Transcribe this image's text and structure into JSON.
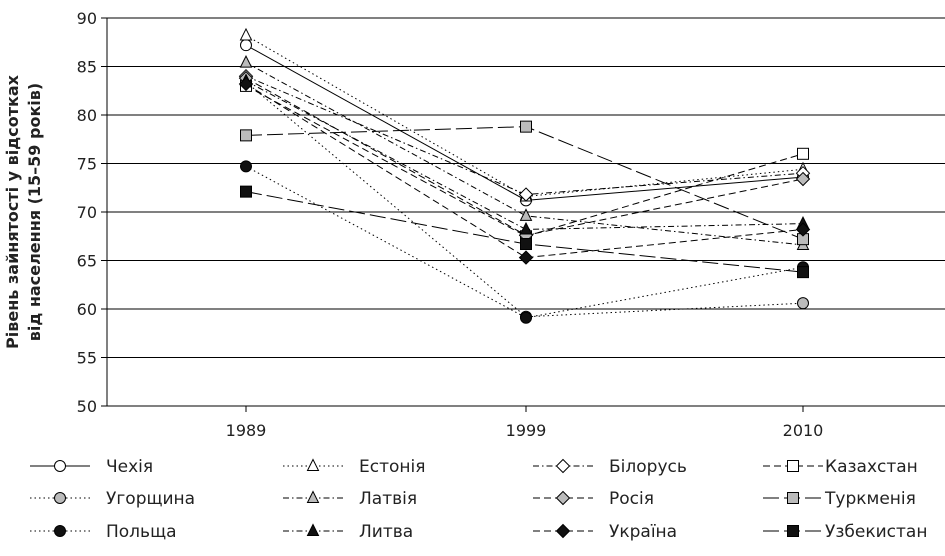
{
  "chart_data": {
    "type": "line",
    "title": "",
    "ylabel_lines": [
      "Рівень зайнятості у відсотках",
      "від населення (15–59 років)"
    ],
    "xlabel": "",
    "x": [
      "1989",
      "1999",
      "2010"
    ],
    "ylim": [
      50,
      90
    ],
    "yticks": [
      50,
      55,
      60,
      65,
      70,
      75,
      80,
      85,
      90
    ],
    "grid": true,
    "legend_position": "bottom",
    "series": [
      {
        "name": "Чехія",
        "values": [
          87.2,
          71.2,
          73.6
        ],
        "dash": "solid",
        "marker": "circle",
        "fill": "#ffffff"
      },
      {
        "name": "Естонія",
        "values": [
          88.2,
          71.6,
          74.4
        ],
        "dash": "dotted",
        "marker": "triangle",
        "fill": "#ffffff"
      },
      {
        "name": "Білорусь",
        "values": [
          84.0,
          71.8,
          74.0
        ],
        "dash": "dashdot",
        "marker": "diamond",
        "fill": "#ffffff"
      },
      {
        "name": "Казахстан",
        "values": [
          83.0,
          67.5,
          76.0
        ],
        "dash": "dashed",
        "marker": "square",
        "fill": "#ffffff"
      },
      {
        "name": "Угорщина",
        "values": [
          83.4,
          59.2,
          60.6
        ],
        "dash": "dotted",
        "marker": "circle",
        "fill": "#bbbbbb"
      },
      {
        "name": "Латвія",
        "values": [
          85.4,
          69.6,
          66.6
        ],
        "dash": "dashdot",
        "marker": "triangle",
        "fill": "#bbbbbb"
      },
      {
        "name": "Росія",
        "values": [
          83.8,
          67.6,
          73.4
        ],
        "dash": "dashed",
        "marker": "diamond",
        "fill": "#bbbbbb"
      },
      {
        "name": "Туркменія",
        "values": [
          77.9,
          78.8,
          67.2
        ],
        "dash": "longdash",
        "marker": "square",
        "fill": "#bbbbbb"
      },
      {
        "name": "Польща",
        "values": [
          74.7,
          59.1,
          64.3
        ],
        "dash": "dotted",
        "marker": "circle",
        "fill": "#111111"
      },
      {
        "name": "Литва",
        "values": [
          83.5,
          68.2,
          68.8
        ],
        "dash": "dashdot",
        "marker": "triangle",
        "fill": "#111111"
      },
      {
        "name": "Україна",
        "values": [
          83.2,
          65.3,
          68.2
        ],
        "dash": "dashed",
        "marker": "diamond",
        "fill": "#111111"
      },
      {
        "name": "Узбекистан",
        "values": [
          72.1,
          66.7,
          63.8
        ],
        "dash": "longdash",
        "marker": "square",
        "fill": "#111111"
      }
    ]
  }
}
